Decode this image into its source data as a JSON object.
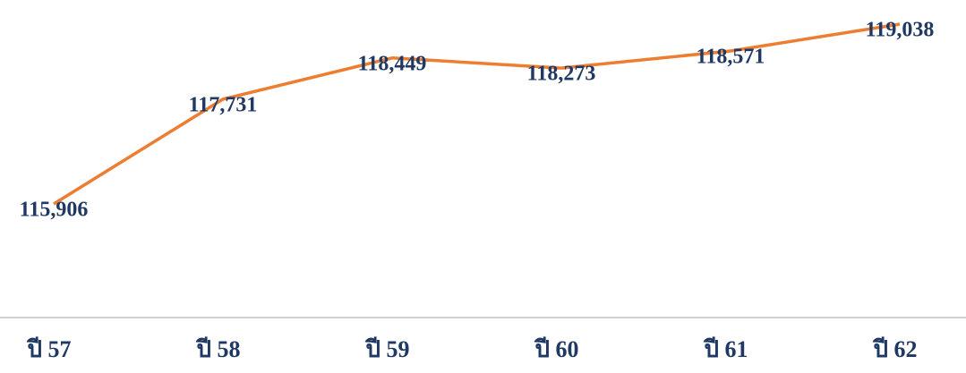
{
  "chart_data": {
    "type": "line",
    "categories": [
      "ปี 57",
      "ปี 58",
      "ปี 59",
      "ปี 60",
      "ปี 61",
      "ปี 62"
    ],
    "series": [
      {
        "color": "#ed7d31",
        "values": [
          115906,
          117731,
          118449,
          118273,
          118571,
          119038
        ],
        "value_labels": [
          "115,906",
          "117,731",
          "118,449",
          "118,273",
          "118,571",
          "119,038"
        ]
      }
    ]
  }
}
